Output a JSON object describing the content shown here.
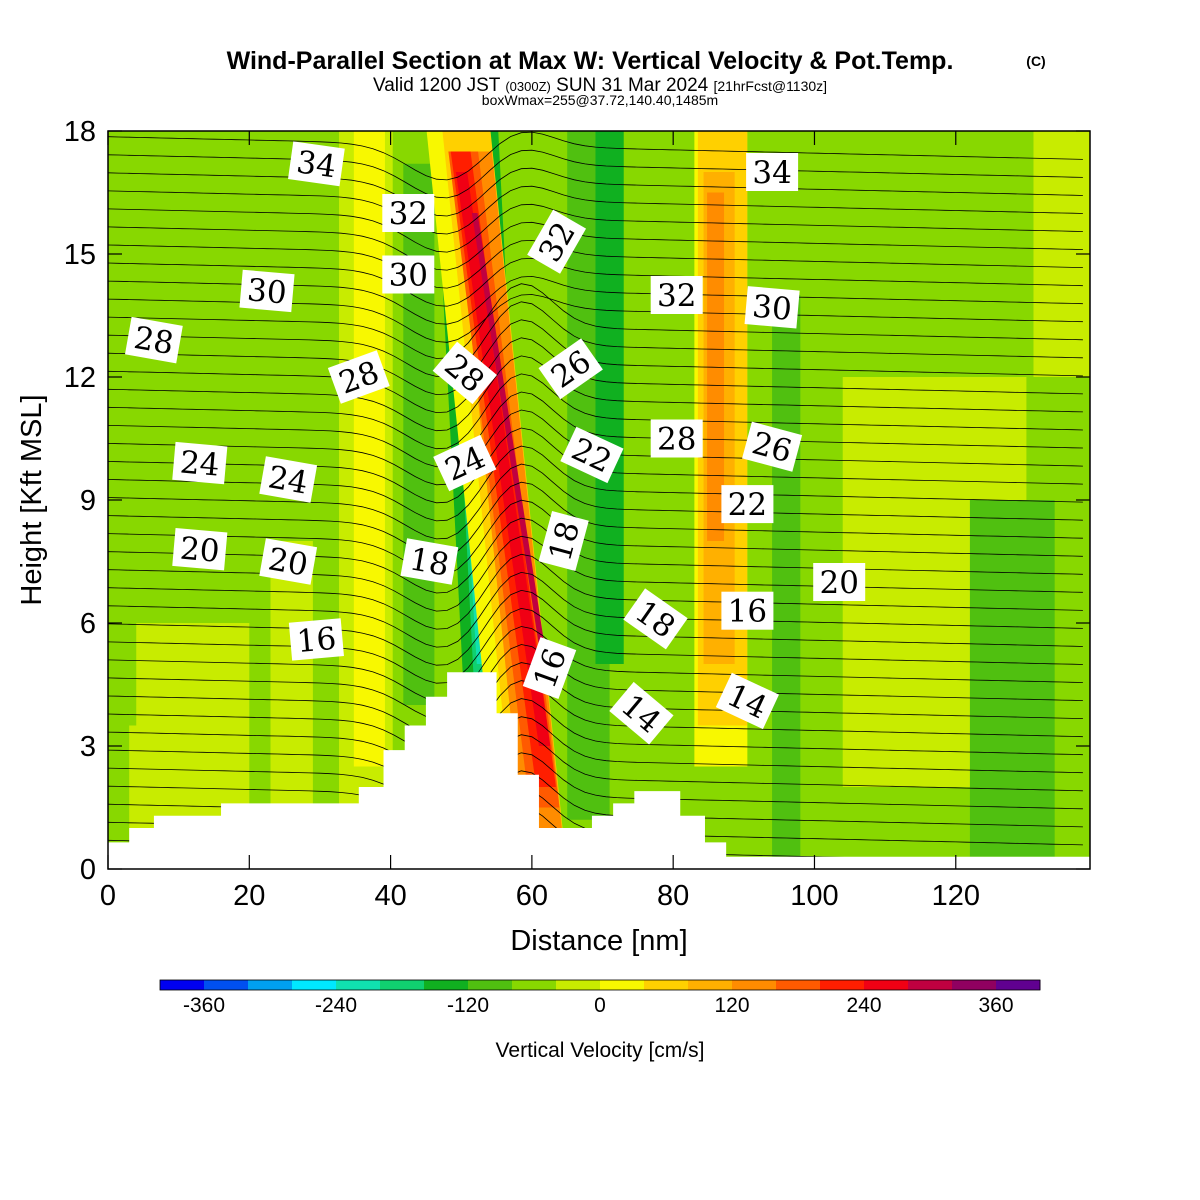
{
  "titles": {
    "main": "Wind-Parallel Section at Max W: Vertical Velocity & Pot.Temp.",
    "copyright": "(C)",
    "valid_a": "Valid 1200 JST",
    "valid_zulu": "(0300Z)",
    "valid_b": "SUN 31 Mar 2024",
    "forecast": "[21hrFcst@1130z]",
    "boxinfo": "boxWmax=255@37.72,140.40,1485m"
  },
  "chart_data": {
    "type": "heatmap",
    "xlabel": "Distance [nm]",
    "ylabel": "Height [Kft MSL]",
    "xlim": [
      0,
      139
    ],
    "ylim": [
      0,
      18
    ],
    "x_ticks": [
      "0",
      "20",
      "40",
      "60",
      "80",
      "100",
      "120"
    ],
    "y_ticks": [
      "0",
      "3",
      "6",
      "9",
      "12",
      "15",
      "18"
    ],
    "colorbar": {
      "label": "Vertical Velocity [cm/s]",
      "ticks": [
        "-360",
        "-240",
        "-120",
        "0",
        "120",
        "240",
        "360"
      ],
      "colors": [
        "#0000f0",
        "#0050f0",
        "#00a0f0",
        "#00e8ff",
        "#10e0b0",
        "#10d070",
        "#10b020",
        "#50c010",
        "#88d800",
        "#c8ec00",
        "#f8f800",
        "#ffd000",
        "#ffb000",
        "#ff8c00",
        "#ff5a00",
        "#ff1e00",
        "#f00014",
        "#c00040",
        "#900060",
        "#600090"
      ]
    },
    "terrain": [
      [
        0,
        0.65
      ],
      [
        3,
        0.65
      ],
      [
        3,
        1.0
      ],
      [
        6.5,
        1.0
      ],
      [
        6.5,
        1.3
      ],
      [
        16,
        1.3
      ],
      [
        16,
        1.6
      ],
      [
        32,
        1.6
      ],
      [
        32,
        1.6
      ],
      [
        35.5,
        1.6
      ],
      [
        35.5,
        2.0
      ],
      [
        39,
        2.0
      ],
      [
        39,
        2.9
      ],
      [
        42,
        2.9
      ],
      [
        42,
        3.5
      ],
      [
        45,
        3.5
      ],
      [
        45,
        4.2
      ],
      [
        48,
        4.2
      ],
      [
        48,
        4.8
      ],
      [
        55,
        4.8
      ],
      [
        55,
        3.8
      ],
      [
        58,
        3.8
      ],
      [
        58,
        2.3
      ],
      [
        61,
        2.3
      ],
      [
        61,
        1.0
      ],
      [
        68.5,
        1.0
      ],
      [
        68.5,
        1.3
      ],
      [
        71.5,
        1.3
      ],
      [
        71.5,
        1.6
      ],
      [
        74.5,
        1.6
      ],
      [
        74.5,
        1.9
      ],
      [
        81,
        1.9
      ],
      [
        81,
        1.3
      ],
      [
        84.5,
        1.3
      ],
      [
        84.5,
        0.65
      ],
      [
        87.5,
        0.65
      ],
      [
        87.5,
        0.3
      ],
      [
        139,
        0.3
      ]
    ],
    "contour_labels": [
      {
        "text": "34",
        "x": 29.5,
        "y": 17.2,
        "rot": 8
      },
      {
        "text": "32",
        "x": 42.5,
        "y": 16.0,
        "rot": 0
      },
      {
        "text": "30",
        "x": 22.5,
        "y": 14.1,
        "rot": 5
      },
      {
        "text": "30",
        "x": 42.5,
        "y": 14.5,
        "rot": 0
      },
      {
        "text": "28",
        "x": 6.5,
        "y": 12.9,
        "rot": 10
      },
      {
        "text": "28",
        "x": 35.5,
        "y": 12.0,
        "rot": -20
      },
      {
        "text": "28",
        "x": 50.5,
        "y": 12.1,
        "rot": 40
      },
      {
        "text": "32",
        "x": 63.5,
        "y": 15.3,
        "rot": -60
      },
      {
        "text": "26",
        "x": 65.5,
        "y": 12.2,
        "rot": -35
      },
      {
        "text": "22",
        "x": 68.5,
        "y": 10.1,
        "rot": 25
      },
      {
        "text": "18",
        "x": 64.5,
        "y": 8.0,
        "rot": -75
      },
      {
        "text": "16",
        "x": 62.5,
        "y": 4.9,
        "rot": -70
      },
      {
        "text": "24",
        "x": 13,
        "y": 9.9,
        "rot": 5
      },
      {
        "text": "24",
        "x": 25.5,
        "y": 9.5,
        "rot": 10
      },
      {
        "text": "24",
        "x": 50.5,
        "y": 9.9,
        "rot": -25
      },
      {
        "text": "20",
        "x": 13,
        "y": 7.8,
        "rot": 5
      },
      {
        "text": "20",
        "x": 25.5,
        "y": 7.5,
        "rot": 10
      },
      {
        "text": "18",
        "x": 45.5,
        "y": 7.5,
        "rot": 10
      },
      {
        "text": "16",
        "x": 29.5,
        "y": 5.6,
        "rot": -5
      },
      {
        "text": "32",
        "x": 80.5,
        "y": 14.0,
        "rot": 0
      },
      {
        "text": "30",
        "x": 94,
        "y": 13.7,
        "rot": 5
      },
      {
        "text": "28",
        "x": 80.5,
        "y": 10.5,
        "rot": 0
      },
      {
        "text": "26",
        "x": 94,
        "y": 10.3,
        "rot": 15
      },
      {
        "text": "22",
        "x": 90.5,
        "y": 8.9,
        "rot": 0
      },
      {
        "text": "34",
        "x": 94,
        "y": 17.0,
        "rot": 0
      },
      {
        "text": "20",
        "x": 103.5,
        "y": 7.0,
        "rot": 0
      },
      {
        "text": "16",
        "x": 90.5,
        "y": 6.3,
        "rot": 0
      },
      {
        "text": "18",
        "x": 77.5,
        "y": 6.1,
        "rot": 35
      },
      {
        "text": "14",
        "x": 75.5,
        "y": 3.8,
        "rot": 40
      },
      {
        "text": "14",
        "x": 90.5,
        "y": 4.1,
        "rot": 25
      }
    ]
  }
}
